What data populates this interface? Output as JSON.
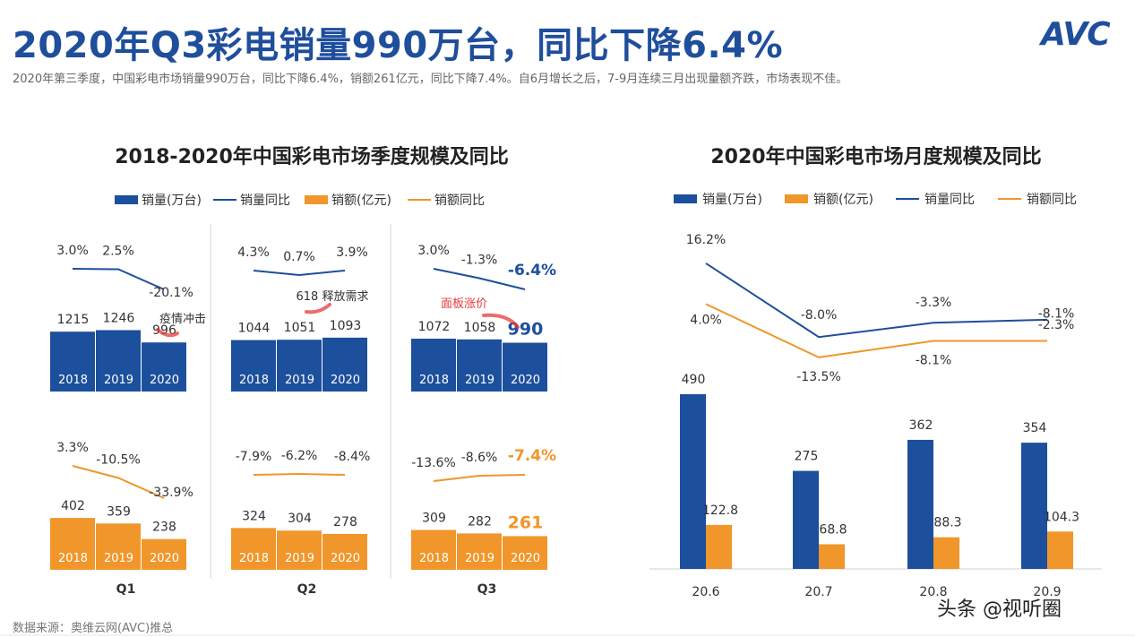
{
  "header": {
    "headline": "2020年Q3彩电销量990万台，同比下降6.4%",
    "subline": "2020年第三季度，中国彩电市场销量990万台，同比下降6.4%，销额261亿元，同比下降7.4%。自6月增长之后，7-9月连续三月出现量额齐跌，市场表现不佳。",
    "logo": "AVC"
  },
  "footer": {
    "source": "数据来源：奥维云网(AVC)推总",
    "watermark": "头条 @视听圈"
  },
  "colors": {
    "navy": "#1c4f9c",
    "orange": "#f0962a",
    "line_navy": "#1c4f9c",
    "line_orange": "#f0962a",
    "red_arrow": "#e83a3a"
  },
  "chart_data": [
    {
      "type": "bar",
      "title": "2018-2020年中国彩电市场季度规模及同比",
      "legend": [
        "销量(万台)",
        "销量同比",
        "销额(亿元)",
        "销额同比"
      ],
      "groups": [
        "Q1",
        "Q2",
        "Q3"
      ],
      "categories": [
        "2018",
        "2019",
        "2020"
      ],
      "series": [
        {
          "name": "销量(万台)",
          "values": [
            [
              1215,
              1246,
              996
            ],
            [
              1044,
              1051,
              1093
            ],
            [
              1072,
              1058,
              990
            ]
          ],
          "yoy_name": "销量同比",
          "yoy": [
            [
              "3.0%",
              "2.5%",
              "-20.1%"
            ],
            [
              "4.3%",
              "0.7%",
              "3.9%"
            ],
            [
              "3.0%",
              "-1.3%",
              "-6.4%"
            ]
          ],
          "yoy_values": [
            [
              3.0,
              2.5,
              -20.1
            ],
            [
              4.3,
              0.7,
              3.9
            ],
            [
              3.0,
              -1.3,
              -6.4
            ]
          ]
        },
        {
          "name": "销额(亿元)",
          "values": [
            [
              402,
              359,
              238
            ],
            [
              324,
              304,
              278
            ],
            [
              309,
              282,
              261
            ]
          ],
          "yoy_name": "销额同比",
          "yoy": [
            [
              "3.3%",
              "-10.5%",
              "-33.9%"
            ],
            [
              "-7.9%",
              "-6.2%",
              "-8.4%"
            ],
            [
              "-13.6%",
              "-8.6%",
              "-7.4%"
            ]
          ],
          "yoy_values": [
            [
              3.3,
              -10.5,
              -33.9
            ],
            [
              -7.9,
              -6.2,
              -8.4
            ],
            [
              -13.6,
              -8.6,
              -7.4
            ]
          ]
        }
      ],
      "annotations": [
        "疫情冲击",
        "618 释放需求",
        "面板涨价"
      ]
    },
    {
      "type": "bar",
      "title": "2020年中国彩电市场月度规模及同比",
      "legend": [
        "销量(万台)",
        "销额(亿元)",
        "销量同比",
        "销额同比"
      ],
      "categories": [
        "20.6",
        "20.7",
        "20.8",
        "20.9"
      ],
      "series": [
        {
          "name": "销量(万台)",
          "values": [
            490,
            275,
            362,
            354
          ]
        },
        {
          "name": "销额(亿元)",
          "values": [
            122.8,
            68.8,
            88.3,
            104.3
          ]
        },
        {
          "name": "销量同比",
          "values": [
            16.2,
            -8.0,
            -3.3,
            -2.3
          ],
          "labels": [
            "16.2%",
            "-8.0%",
            "-3.3%",
            "-2.3%"
          ]
        },
        {
          "name": "销额同比",
          "values": [
            4.0,
            -13.5,
            -8.1,
            -8.1
          ],
          "labels": [
            "4.0%",
            "-13.5%",
            "-8.1%",
            "-8.1%"
          ]
        }
      ]
    }
  ]
}
